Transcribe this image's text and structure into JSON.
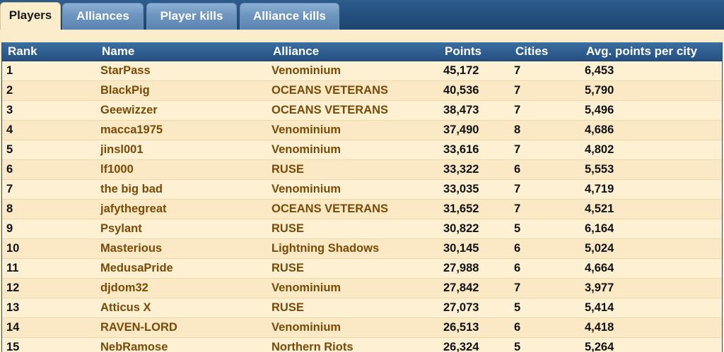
{
  "tabs": [
    {
      "label": "Players",
      "active": true
    },
    {
      "label": "Alliances",
      "active": false
    },
    {
      "label": "Player kills",
      "active": false
    },
    {
      "label": "Alliance kills",
      "active": false
    }
  ],
  "table": {
    "headers": {
      "rank": "Rank",
      "name": "Name",
      "alliance": "Alliance",
      "points": "Points",
      "cities": "Cities",
      "avg": "Avg. points per city"
    },
    "rows": [
      {
        "rank": "1",
        "name": "StarPass",
        "alliance": "Venominium",
        "points": "45,172",
        "cities": "7",
        "avg": "6,453"
      },
      {
        "rank": "2",
        "name": "BlackPig",
        "alliance": "OCEANS VETERANS",
        "points": "40,536",
        "cities": "7",
        "avg": "5,790"
      },
      {
        "rank": "3",
        "name": "Geewizzer",
        "alliance": "OCEANS VETERANS",
        "points": "38,473",
        "cities": "7",
        "avg": "5,496"
      },
      {
        "rank": "4",
        "name": "macca1975",
        "alliance": "Venominium",
        "points": "37,490",
        "cities": "8",
        "avg": "4,686"
      },
      {
        "rank": "5",
        "name": "jinsl001",
        "alliance": "Venominium",
        "points": "33,616",
        "cities": "7",
        "avg": "4,802"
      },
      {
        "rank": "6",
        "name": "lf1000",
        "alliance": "RUSE",
        "points": "33,322",
        "cities": "6",
        "avg": "5,553"
      },
      {
        "rank": "7",
        "name": "the big bad",
        "alliance": "Venominium",
        "points": "33,035",
        "cities": "7",
        "avg": "4,719"
      },
      {
        "rank": "8",
        "name": "jafythegreat",
        "alliance": "OCEANS VETERANS",
        "points": "31,652",
        "cities": "7",
        "avg": "4,521"
      },
      {
        "rank": "9",
        "name": "Psylant",
        "alliance": "RUSE",
        "points": "30,822",
        "cities": "5",
        "avg": "6,164"
      },
      {
        "rank": "10",
        "name": "Masterious",
        "alliance": "Lightning Shadows",
        "points": "30,145",
        "cities": "6",
        "avg": "5,024"
      },
      {
        "rank": "11",
        "name": "MedusaPride",
        "alliance": "RUSE",
        "points": "27,988",
        "cities": "6",
        "avg": "4,664"
      },
      {
        "rank": "12",
        "name": "djdom32",
        "alliance": "Venominium",
        "points": "27,842",
        "cities": "7",
        "avg": "3,977"
      },
      {
        "rank": "13",
        "name": "Atticus X",
        "alliance": "RUSE",
        "points": "27,073",
        "cities": "5",
        "avg": "5,414"
      },
      {
        "rank": "14",
        "name": "RAVEN-LORD",
        "alliance": "Venominium",
        "points": "26,513",
        "cities": "6",
        "avg": "4,418"
      },
      {
        "rank": "15",
        "name": "NebRamose",
        "alliance": "Northern Riots",
        "points": "26,324",
        "cities": "5",
        "avg": "5,264"
      }
    ]
  },
  "colors": {
    "header_bg": "#2f5f91",
    "tab_bg": "#6e95bf",
    "row_bg": "#fdf0d3",
    "link_text": "#7a4a06"
  }
}
